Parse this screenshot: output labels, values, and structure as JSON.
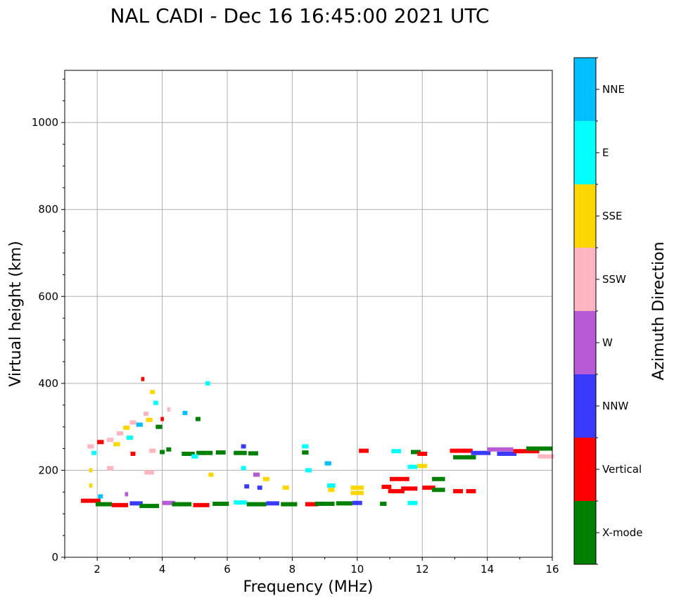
{
  "chart_data": {
    "type": "scatter",
    "title": "NAL CADI - Dec 16 16:45:00 2021 UTC",
    "xlabel": "Frequency (MHz)",
    "ylabel": "Virtual height (km)",
    "xlim": [
      1,
      16
    ],
    "ylim": [
      0,
      1120
    ],
    "xticks": [
      2,
      4,
      6,
      8,
      10,
      12,
      14,
      16
    ],
    "yticks": [
      0,
      200,
      400,
      600,
      800,
      1000
    ],
    "grid": true,
    "colorbar": {
      "label": "Azimuth Direction",
      "categories": [
        {
          "name": "X-mode",
          "color": "#008000"
        },
        {
          "name": "Vertical",
          "color": "#ff0000"
        },
        {
          "name": "NNW",
          "color": "#3a3aff"
        },
        {
          "name": "W",
          "color": "#b65ad6"
        },
        {
          "name": "SSW",
          "color": "#ffb6c1"
        },
        {
          "name": "SSE",
          "color": "#ffd700"
        },
        {
          "name": "E",
          "color": "#00ffff"
        },
        {
          "name": "NNE",
          "color": "#00bfff"
        }
      ]
    },
    "echoes": [
      {
        "x": 1.8,
        "y": 130,
        "w": 0.6,
        "c": "Vertical"
      },
      {
        "x": 2.2,
        "y": 122,
        "w": 0.5,
        "c": "X-mode"
      },
      {
        "x": 2.7,
        "y": 120,
        "w": 0.5,
        "c": "Vertical"
      },
      {
        "x": 3.2,
        "y": 124,
        "w": 0.4,
        "c": "NNW"
      },
      {
        "x": 3.6,
        "y": 118,
        "w": 0.6,
        "c": "X-mode"
      },
      {
        "x": 4.2,
        "y": 125,
        "w": 0.4,
        "c": "W"
      },
      {
        "x": 4.6,
        "y": 122,
        "w": 0.6,
        "c": "X-mode"
      },
      {
        "x": 5.2,
        "y": 120,
        "w": 0.5,
        "c": "Vertical"
      },
      {
        "x": 5.8,
        "y": 123,
        "w": 0.5,
        "c": "X-mode"
      },
      {
        "x": 6.4,
        "y": 126,
        "w": 0.4,
        "c": "E"
      },
      {
        "x": 6.9,
        "y": 122,
        "w": 0.6,
        "c": "X-mode"
      },
      {
        "x": 7.4,
        "y": 124,
        "w": 0.4,
        "c": "NNW"
      },
      {
        "x": 7.9,
        "y": 122,
        "w": 0.5,
        "c": "X-mode"
      },
      {
        "x": 8.6,
        "y": 122,
        "w": 0.4,
        "c": "Vertical"
      },
      {
        "x": 9.0,
        "y": 123,
        "w": 0.6,
        "c": "X-mode"
      },
      {
        "x": 9.6,
        "y": 124,
        "w": 0.5,
        "c": "X-mode"
      },
      {
        "x": 10.0,
        "y": 125,
        "w": 0.3,
        "c": "NNW"
      },
      {
        "x": 9.2,
        "y": 155,
        "w": 0.2,
        "c": "SSE"
      },
      {
        "x": 10.0,
        "y": 160,
        "w": 0.4,
        "c": "SSE"
      },
      {
        "x": 10.0,
        "y": 148,
        "w": 0.4,
        "c": "SSE"
      },
      {
        "x": 10.9,
        "y": 162,
        "w": 0.3,
        "c": "Vertical"
      },
      {
        "x": 11.2,
        "y": 152,
        "w": 0.5,
        "c": "Vertical"
      },
      {
        "x": 11.6,
        "y": 158,
        "w": 0.5,
        "c": "Vertical"
      },
      {
        "x": 12.2,
        "y": 160,
        "w": 0.4,
        "c": "Vertical"
      },
      {
        "x": 13.1,
        "y": 152,
        "w": 0.3,
        "c": "Vertical"
      },
      {
        "x": 13.5,
        "y": 152,
        "w": 0.3,
        "c": "Vertical"
      },
      {
        "x": 11.3,
        "y": 180,
        "w": 0.6,
        "c": "Vertical"
      },
      {
        "x": 12.0,
        "y": 210,
        "w": 0.3,
        "c": "SSE"
      },
      {
        "x": 11.7,
        "y": 208,
        "w": 0.3,
        "c": "E"
      },
      {
        "x": 4.8,
        "y": 238,
        "w": 0.4,
        "c": "X-mode"
      },
      {
        "x": 5.3,
        "y": 240,
        "w": 0.5,
        "c": "X-mode"
      },
      {
        "x": 5.8,
        "y": 241,
        "w": 0.3,
        "c": "X-mode"
      },
      {
        "x": 6.4,
        "y": 240,
        "w": 0.4,
        "c": "X-mode"
      },
      {
        "x": 6.8,
        "y": 239,
        "w": 0.3,
        "c": "X-mode"
      },
      {
        "x": 8.4,
        "y": 241,
        "w": 0.2,
        "c": "X-mode"
      },
      {
        "x": 10.2,
        "y": 245,
        "w": 0.3,
        "c": "Vertical"
      },
      {
        "x": 11.2,
        "y": 244,
        "w": 0.3,
        "c": "E"
      },
      {
        "x": 11.8,
        "y": 242,
        "w": 0.3,
        "c": "X-mode"
      },
      {
        "x": 12.0,
        "y": 238,
        "w": 0.3,
        "c": "Vertical"
      },
      {
        "x": 13.2,
        "y": 245,
        "w": 0.7,
        "c": "Vertical"
      },
      {
        "x": 13.3,
        "y": 230,
        "w": 0.7,
        "c": "X-mode"
      },
      {
        "x": 13.8,
        "y": 240,
        "w": 0.6,
        "c": "NNW"
      },
      {
        "x": 14.4,
        "y": 248,
        "w": 0.8,
        "c": "W"
      },
      {
        "x": 14.6,
        "y": 238,
        "w": 0.6,
        "c": "NNW"
      },
      {
        "x": 15.2,
        "y": 244,
        "w": 0.8,
        "c": "Vertical"
      },
      {
        "x": 15.6,
        "y": 250,
        "w": 0.8,
        "c": "X-mode"
      },
      {
        "x": 15.8,
        "y": 232,
        "w": 0.5,
        "c": "SSW"
      },
      {
        "x": 8.5,
        "y": 200,
        "w": 0.2,
        "c": "E"
      },
      {
        "x": 9.1,
        "y": 216,
        "w": 0.2,
        "c": "NNE"
      },
      {
        "x": 6.5,
        "y": 205,
        "w": 0.15,
        "c": "E"
      },
      {
        "x": 6.9,
        "y": 190,
        "w": 0.2,
        "c": "W"
      },
      {
        "x": 7.2,
        "y": 180,
        "w": 0.2,
        "c": "SSE"
      },
      {
        "x": 6.6,
        "y": 163,
        "w": 0.15,
        "c": "NNW"
      },
      {
        "x": 7.0,
        "y": 160,
        "w": 0.15,
        "c": "NNW"
      },
      {
        "x": 5.4,
        "y": 400,
        "w": 0.15,
        "c": "E"
      },
      {
        "x": 5.1,
        "y": 318,
        "w": 0.15,
        "c": "X-mode"
      },
      {
        "x": 4.7,
        "y": 332,
        "w": 0.15,
        "c": "NNE"
      },
      {
        "x": 1.8,
        "y": 255,
        "w": 0.2,
        "c": "SSW"
      },
      {
        "x": 2.1,
        "y": 265,
        "w": 0.2,
        "c": "Vertical"
      },
      {
        "x": 2.4,
        "y": 270,
        "w": 0.2,
        "c": "SSW"
      },
      {
        "x": 2.7,
        "y": 285,
        "w": 0.2,
        "c": "SSW"
      },
      {
        "x": 2.9,
        "y": 298,
        "w": 0.2,
        "c": "SSE"
      },
      {
        "x": 3.1,
        "y": 310,
        "w": 0.2,
        "c": "SSW"
      },
      {
        "x": 3.3,
        "y": 305,
        "w": 0.2,
        "c": "NNE"
      },
      {
        "x": 3.6,
        "y": 316,
        "w": 0.2,
        "c": "SSE"
      },
      {
        "x": 3.9,
        "y": 300,
        "w": 0.2,
        "c": "X-mode"
      },
      {
        "x": 3.5,
        "y": 330,
        "w": 0.15,
        "c": "SSW"
      },
      {
        "x": 3.8,
        "y": 355,
        "w": 0.15,
        "c": "E"
      },
      {
        "x": 3.7,
        "y": 380,
        "w": 0.15,
        "c": "SSE"
      },
      {
        "x": 3.4,
        "y": 410,
        "w": 0.1,
        "c": "Vertical"
      },
      {
        "x": 4.2,
        "y": 340,
        "w": 0.1,
        "c": "SSW"
      },
      {
        "x": 4.0,
        "y": 318,
        "w": 0.1,
        "c": "Vertical"
      },
      {
        "x": 3.0,
        "y": 275,
        "w": 0.2,
        "c": "E"
      },
      {
        "x": 2.6,
        "y": 260,
        "w": 0.2,
        "c": "SSE"
      },
      {
        "x": 1.9,
        "y": 240,
        "w": 0.15,
        "c": "E"
      },
      {
        "x": 3.1,
        "y": 238,
        "w": 0.15,
        "c": "Vertical"
      },
      {
        "x": 3.7,
        "y": 245,
        "w": 0.2,
        "c": "SSW"
      },
      {
        "x": 4.0,
        "y": 242,
        "w": 0.15,
        "c": "X-mode"
      },
      {
        "x": 4.2,
        "y": 248,
        "w": 0.15,
        "c": "X-mode"
      },
      {
        "x": 3.6,
        "y": 195,
        "w": 0.3,
        "c": "SSW"
      },
      {
        "x": 2.4,
        "y": 205,
        "w": 0.2,
        "c": "SSW"
      },
      {
        "x": 1.8,
        "y": 200,
        "w": 0.1,
        "c": "SSE"
      },
      {
        "x": 1.8,
        "y": 165,
        "w": 0.1,
        "c": "SSE"
      },
      {
        "x": 2.9,
        "y": 145,
        "w": 0.1,
        "c": "W"
      },
      {
        "x": 2.1,
        "y": 140,
        "w": 0.15,
        "c": "NNE"
      },
      {
        "x": 9.2,
        "y": 165,
        "w": 0.25,
        "c": "E"
      },
      {
        "x": 7.8,
        "y": 160,
        "w": 0.2,
        "c": "SSE"
      },
      {
        "x": 5.5,
        "y": 190,
        "w": 0.15,
        "c": "SSE"
      },
      {
        "x": 12.5,
        "y": 180,
        "w": 0.4,
        "c": "X-mode"
      },
      {
        "x": 12.5,
        "y": 155,
        "w": 0.4,
        "c": "X-mode"
      },
      {
        "x": 11.7,
        "y": 125,
        "w": 0.3,
        "c": "E"
      },
      {
        "x": 10.8,
        "y": 123,
        "w": 0.2,
        "c": "X-mode"
      },
      {
        "x": 6.5,
        "y": 255,
        "w": 0.15,
        "c": "NNW"
      },
      {
        "x": 8.4,
        "y": 255,
        "w": 0.2,
        "c": "E"
      },
      {
        "x": 5.0,
        "y": 232,
        "w": 0.2,
        "c": "E"
      }
    ]
  }
}
